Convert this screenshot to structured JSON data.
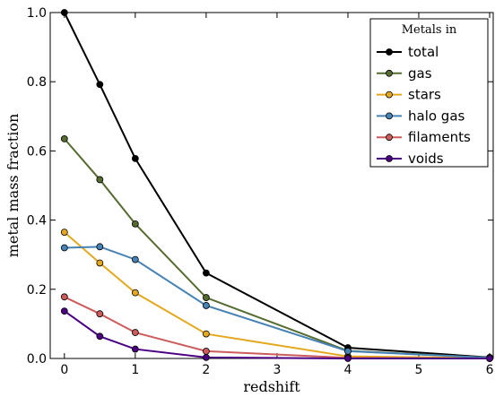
{
  "chart_data": {
    "type": "line",
    "title": "",
    "xlabel": "redshift",
    "ylabel": "metal mass fraction",
    "xlim": [
      -0.2,
      6.05
    ],
    "ylim": [
      0.0,
      1.0
    ],
    "xticks": [
      0,
      1,
      2,
      3,
      4,
      5,
      6
    ],
    "yticks": [
      0.0,
      0.2,
      0.4,
      0.6,
      0.8,
      1.0
    ],
    "xtick_labels": [
      "0",
      "1",
      "2",
      "3",
      "4",
      "5",
      "6"
    ],
    "ytick_labels": [
      "0.0",
      "0.2",
      "0.4",
      "0.6",
      "0.8",
      "1.0"
    ],
    "grid": false,
    "legend": {
      "title": "Metals in",
      "placement": "top-right"
    },
    "x": [
      0,
      0.5,
      1,
      2,
      4,
      6
    ],
    "series": [
      {
        "name": "total",
        "color": "#000000",
        "values": [
          1.0,
          0.792,
          0.578,
          0.247,
          0.031,
          0.003
        ]
      },
      {
        "name": "gas",
        "color": "#556b2f",
        "values": [
          0.635,
          0.517,
          0.389,
          0.176,
          0.022,
          0.002
        ]
      },
      {
        "name": "stars",
        "color": "#e3a81e",
        "values": [
          0.365,
          0.276,
          0.19,
          0.071,
          0.006,
          0.001
        ]
      },
      {
        "name": "halo gas",
        "color": "#4682b4",
        "values": [
          0.32,
          0.323,
          0.286,
          0.153,
          0.021,
          0.002
        ]
      },
      {
        "name": "filaments",
        "color": "#cd5c5c",
        "values": [
          0.178,
          0.129,
          0.075,
          0.021,
          0.002,
          0.0
        ]
      },
      {
        "name": "voids",
        "color": "#4b0082",
        "values": [
          0.137,
          0.064,
          0.027,
          0.003,
          0.0,
          0.0
        ]
      }
    ]
  }
}
